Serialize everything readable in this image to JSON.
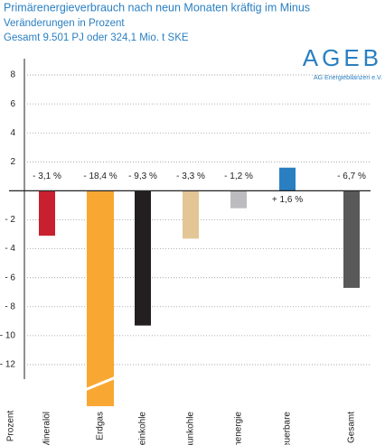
{
  "chart_data": {
    "type": "bar",
    "title": "Primärenergieverbrauch nach neun Monaten kräftig im Minus",
    "subtitle": "Veränderungen in Prozent",
    "note": "Gesamt 9.501 PJ oder 324,1 Mio. t SKE",
    "logo": "AGEB",
    "logo_subtitle": "AG Energiebilanzen e.V.",
    "y_label": "Prozent",
    "categories": [
      "Mineralöl",
      "Erdgas",
      "Steinkohle",
      "Braunkohle",
      "Kernenergie",
      "Erneuerbare",
      "Gesamt"
    ],
    "values": [
      -3.1,
      -18.4,
      -9.3,
      -3.3,
      -1.2,
      1.6,
      -6.7
    ],
    "value_labels": [
      "- 3,1 %",
      "- 18,4 %",
      "- 9,3 %",
      "- 3,3 %",
      "- 1,2 %",
      "+ 1,6 %",
      "- 6,7 %"
    ],
    "colors": [
      "#c8202f",
      "#f9a733",
      "#231f20",
      "#e3c596",
      "#bcbcbe",
      "#2a7fc1",
      "#595959"
    ],
    "ylim": [
      -13,
      9
    ],
    "yticks": [
      8,
      6,
      4,
      2,
      {
        "value": -2,
        "label": "- 2"
      },
      {
        "value": -4,
        "label": "- 4"
      },
      {
        "value": -6,
        "label": "- 6"
      },
      {
        "value": -8,
        "label": "- 8"
      },
      {
        "value": -10,
        "label": "- 10"
      },
      {
        "value": -12,
        "label": "- 12"
      }
    ],
    "grid": true
  }
}
